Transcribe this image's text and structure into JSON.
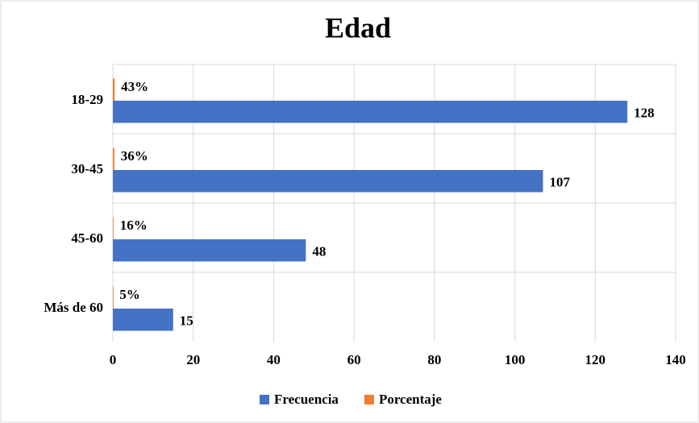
{
  "chart_data": {
    "type": "hbar",
    "title": "Edad",
    "categories": [
      "18-29",
      "30-45",
      "45-60",
      "Más de 60"
    ],
    "series": [
      {
        "name": "Frecuencia",
        "color": "#4472c4",
        "values": [
          128,
          107,
          48,
          15
        ]
      },
      {
        "name": "Porcentaje",
        "color": "#ed7d31",
        "values": [
          0.43,
          0.36,
          0.16,
          0.05
        ],
        "value_labels": [
          "43%",
          "36%",
          "16%",
          "5%"
        ]
      }
    ],
    "xlim": [
      0,
      140
    ],
    "xticks": [
      0,
      20,
      40,
      60,
      80,
      100,
      120,
      140
    ],
    "grid": true,
    "legend": "bottom"
  }
}
